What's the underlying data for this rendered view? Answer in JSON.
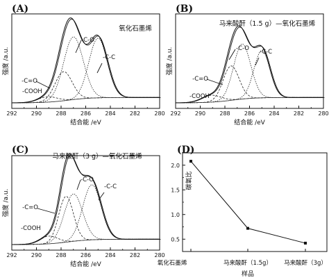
{
  "chart_data": [
    {
      "type": "line",
      "panel_label": "(A)",
      "title": "氧化石墨烯",
      "xlabel": "结合能 /eV",
      "ylabel": "强度 /a.u.",
      "xlim": [
        292,
        280
      ],
      "xticks": [
        292,
        290,
        288,
        286,
        284,
        282,
        280
      ],
      "peaks": [
        {
          "label": "-COOH",
          "center": 289.1,
          "height": 0.07,
          "width": 0.8
        },
        {
          "label": "-C=O",
          "center": 287.8,
          "height": 0.38,
          "width": 0.7
        },
        {
          "label": "-C-O",
          "center": 287.0,
          "height": 0.82,
          "width": 0.8
        },
        {
          "label": "-C-C",
          "center": 285.0,
          "height": 0.78,
          "width": 0.75
        }
      ]
    },
    {
      "type": "line",
      "panel_label": "(B)",
      "title": "马来酸酐（1.5 g）—氧化石墨烯",
      "xlabel": "结合能 /eV",
      "ylabel": "强度 /a.u.",
      "xlim": [
        292,
        280
      ],
      "xticks": [
        292,
        290,
        288,
        286,
        284,
        282,
        280
      ],
      "peaks": [
        {
          "label": "-COOH",
          "center": 289.1,
          "height": 0.09,
          "width": 0.8
        },
        {
          "label": "-C=O",
          "center": 287.5,
          "height": 0.45,
          "width": 0.65
        },
        {
          "label": "-C-O",
          "center": 286.6,
          "height": 0.72,
          "width": 0.7
        },
        {
          "label": "-C-C",
          "center": 285.0,
          "height": 0.62,
          "width": 0.65
        }
      ]
    },
    {
      "type": "line",
      "panel_label": "(C)",
      "title": "马来酸酐（3 g）—氧化石墨烯",
      "xlabel": "结合能 /eV",
      "ylabel": "强度 /a.u.",
      "xlim": [
        292,
        280
      ],
      "xticks": [
        292,
        290,
        288,
        286,
        284,
        282,
        280
      ],
      "peaks": [
        {
          "label": "-COOH",
          "center": 289.0,
          "height": 0.1,
          "width": 0.75
        },
        {
          "label": "-C=O",
          "center": 287.6,
          "height": 0.6,
          "width": 0.6
        },
        {
          "label": "-C-O",
          "center": 287.0,
          "height": 0.62,
          "width": 0.75
        },
        {
          "label": "-C-C",
          "center": 285.5,
          "height": 0.72,
          "width": 0.75
        }
      ]
    },
    {
      "type": "line",
      "panel_label": "(D)",
      "xlabel": "样品",
      "ylabel": "碳氧比",
      "categories": [
        "氧化石墨烯",
        "马来酸酐（1.5g）",
        "马来酸酐（3g）"
      ],
      "values": [
        2.08,
        0.72,
        0.42
      ],
      "ylim": [
        0.25,
        2.25
      ],
      "yticks": [
        0.5,
        1.0,
        1.5,
        2.0
      ],
      "ytick_labels": [
        "0.5",
        "1.0",
        "1.5",
        "2.0"
      ]
    }
  ]
}
